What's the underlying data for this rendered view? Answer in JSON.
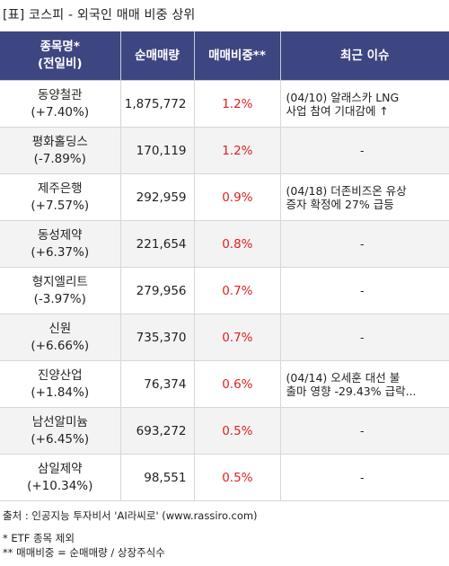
{
  "title": "[표] 코스피 - 외국인 매매 비중 상위",
  "headers": {
    "name_line1": "종목명*",
    "name_line2": "(전일비)",
    "volume": "순매매량",
    "ratio": "매매비중**",
    "issue": "최근 이슈"
  },
  "rows": [
    {
      "name": "동양철관",
      "change": "(+7.40%)",
      "volume": "1,875,772",
      "ratio": "1.2%",
      "issue_line1": "(04/10) 알래스카 LNG",
      "issue_line2": "사업 참여 기대감에 ↑"
    },
    {
      "name": "평화홀딩스",
      "change": "(-7.89%)",
      "volume": "170,119",
      "ratio": "1.2%",
      "issue_line1": "-",
      "issue_line2": ""
    },
    {
      "name": "제주은행",
      "change": "(+7.57%)",
      "volume": "292,959",
      "ratio": "0.9%",
      "issue_line1": "(04/18) 더존비즈온 유상",
      "issue_line2": "증자 확정에 27% 급등"
    },
    {
      "name": "동성제약",
      "change": "(+6.37%)",
      "volume": "221,654",
      "ratio": "0.8%",
      "issue_line1": "-",
      "issue_line2": ""
    },
    {
      "name": "형지엘리트",
      "change": "(-3.97%)",
      "volume": "279,956",
      "ratio": "0.7%",
      "issue_line1": "-",
      "issue_line2": ""
    },
    {
      "name": "신원",
      "change": "(+6.66%)",
      "volume": "735,370",
      "ratio": "0.7%",
      "issue_line1": "-",
      "issue_line2": ""
    },
    {
      "name": "진양산업",
      "change": "(+1.84%)",
      "volume": "76,374",
      "ratio": "0.6%",
      "issue_line1": "(04/14) 오세훈 대선 불",
      "issue_line2": "출마 영향 -29.43% 급락..."
    },
    {
      "name": "남선알미늄",
      "change": "(+6.45%)",
      "volume": "693,272",
      "ratio": "0.5%",
      "issue_line1": "-",
      "issue_line2": ""
    },
    {
      "name": "삼일제약",
      "change": "(+10.34%)",
      "volume": "98,551",
      "ratio": "0.5%",
      "issue_line1": "-",
      "issue_line2": ""
    }
  ],
  "source": "출처 : 인공지능 투자비서 'AI라씨로' (www.rassiro.com)",
  "note1": "* ETF 종목 제외",
  "note2": "** 매매비중 = 순매매량 / 상장주식수",
  "colors": {
    "header_bg": "#3d4680",
    "ratio_text": "#e02020",
    "even_row_bg": "#f3f3f3"
  }
}
